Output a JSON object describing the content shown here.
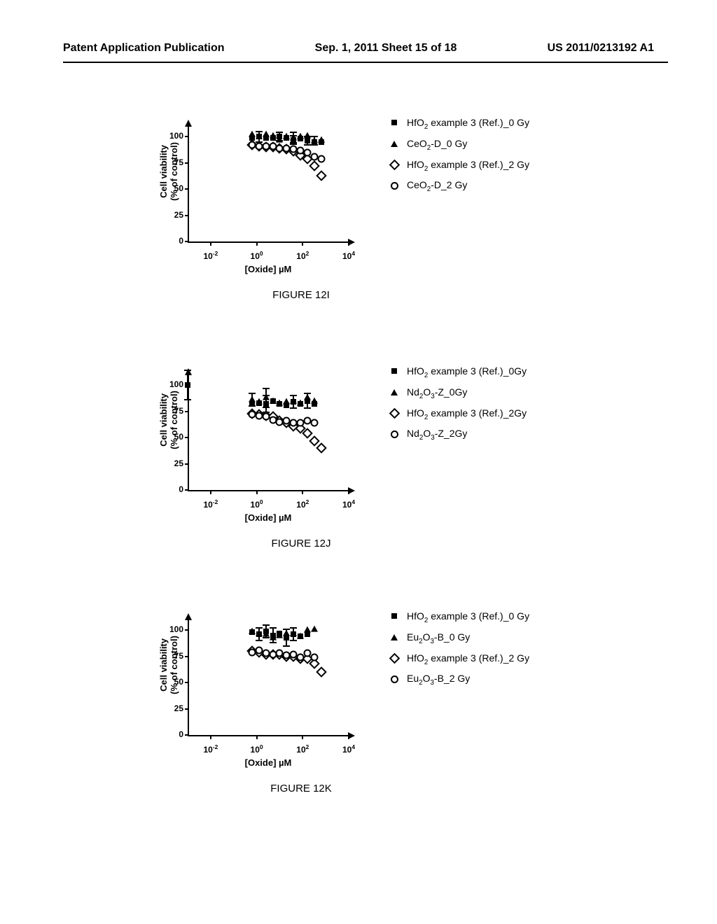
{
  "header": {
    "left": "Patent Application Publication",
    "center": "Sep. 1, 2011  Sheet 15 of 18",
    "right": "US 2011/0213192 A1"
  },
  "colors": {
    "text": "#000000",
    "background": "#ffffff",
    "axis": "#000000",
    "marker_fill": "#000000"
  },
  "axes": {
    "ylabel_line1": "Cell viability",
    "ylabel_line2": "(% of control)",
    "xlabel": "[Oxide] µM",
    "ylim": [
      0,
      110
    ],
    "yticks": [
      0,
      25,
      50,
      75,
      100
    ],
    "xlim_log": [
      -3,
      4
    ],
    "xticks_log": [
      -2,
      0,
      2,
      4
    ],
    "xticks_labels": [
      "10⁻²",
      "10⁰",
      "10²",
      "10⁴"
    ]
  },
  "figI": {
    "caption": "FIGURE 12I",
    "legend": [
      {
        "marker": "sq",
        "label_html": "HfO<sub>2</sub> example 3 (Ref.)_0 Gy"
      },
      {
        "marker": "tr",
        "label_html": "CeO<sub>2</sub>-D_0 Gy"
      },
      {
        "marker": "di",
        "label_html": "HfO<sub>2</sub> example 3 (Ref.)_2 Gy"
      },
      {
        "marker": "ci",
        "label_html": "CeO<sub>2</sub>-D_2 Gy"
      }
    ],
    "series": {
      "sq": [
        [
          -0.2,
          99
        ],
        [
          0.1,
          100
        ],
        [
          0.4,
          99
        ],
        [
          0.7,
          99
        ],
        [
          1.0,
          100
        ],
        [
          1.3,
          99
        ],
        [
          1.6,
          97
        ],
        [
          1.9,
          98
        ],
        [
          2.2,
          96
        ],
        [
          2.5,
          95
        ],
        [
          2.8,
          95
        ]
      ],
      "tr": [
        [
          -0.2,
          102
        ],
        [
          0.1,
          100
        ],
        [
          0.4,
          102
        ],
        [
          0.7,
          101
        ],
        [
          1.0,
          97
        ],
        [
          1.3,
          100
        ],
        [
          1.6,
          99
        ],
        [
          1.9,
          100
        ],
        [
          2.2,
          101
        ],
        [
          2.5,
          96
        ],
        [
          2.8,
          97
        ]
      ],
      "di": [
        [
          -0.2,
          92
        ],
        [
          0.1,
          91
        ],
        [
          0.4,
          90
        ],
        [
          0.7,
          90
        ],
        [
          1.0,
          89
        ],
        [
          1.3,
          88
        ],
        [
          1.6,
          86
        ],
        [
          1.9,
          82
        ],
        [
          2.2,
          79
        ],
        [
          2.5,
          72
        ],
        [
          2.8,
          63
        ]
      ],
      "ci": [
        [
          -0.2,
          92
        ],
        [
          0.1,
          91
        ],
        [
          0.4,
          91
        ],
        [
          0.7,
          91
        ],
        [
          1.0,
          89
        ],
        [
          1.3,
          89
        ],
        [
          1.6,
          88
        ],
        [
          1.9,
          87
        ],
        [
          2.2,
          85
        ],
        [
          2.5,
          81
        ],
        [
          2.8,
          79
        ]
      ]
    },
    "errorbars": {
      "sq": {
        "1.0": 4,
        "1.6": 4,
        "2.2": 4
      },
      "tr": {
        "0.1": 5,
        "1.6": 5,
        "2.5": 4
      }
    }
  },
  "figJ": {
    "caption": "FIGURE 12J",
    "legend": [
      {
        "marker": "sq",
        "label_html": "HfO<sub>2</sub> example 3 (Ref.)_0Gy"
      },
      {
        "marker": "tr",
        "label_html": "Nd<sub>2</sub>O<sub>3</sub>-Z_0Gy"
      },
      {
        "marker": "di",
        "label_html": "HfO<sub>2</sub> example 3 (Ref.)_2Gy"
      },
      {
        "marker": "ci",
        "label_html": "Nd<sub>2</sub>O<sub>3</sub>-Z_2Gy"
      }
    ],
    "series": {
      "sq": [
        [
          -0.2,
          82
        ],
        [
          0.1,
          83
        ],
        [
          0.4,
          82
        ],
        [
          0.7,
          85
        ],
        [
          1.0,
          82
        ],
        [
          1.3,
          81
        ],
        [
          1.6,
          84
        ],
        [
          1.9,
          82
        ],
        [
          2.2,
          85
        ],
        [
          2.5,
          82
        ]
      ],
      "tr": [
        [
          -0.2,
          86
        ],
        [
          0.1,
          84
        ],
        [
          0.4,
          88
        ],
        [
          0.7,
          85
        ],
        [
          1.0,
          83
        ],
        [
          1.3,
          84
        ],
        [
          1.6,
          85
        ],
        [
          1.9,
          83
        ],
        [
          2.2,
          88
        ],
        [
          2.5,
          85
        ]
      ],
      "di": [
        [
          -0.2,
          73
        ],
        [
          0.1,
          72
        ],
        [
          0.4,
          71
        ],
        [
          0.7,
          70
        ],
        [
          1.0,
          66
        ],
        [
          1.3,
          64
        ],
        [
          1.6,
          61
        ],
        [
          1.9,
          59
        ],
        [
          2.2,
          54
        ],
        [
          2.5,
          47
        ],
        [
          2.8,
          40
        ]
      ],
      "ci": [
        [
          -0.2,
          72
        ],
        [
          0.1,
          71
        ],
        [
          0.4,
          70
        ],
        [
          0.7,
          67
        ],
        [
          1.0,
          65
        ],
        [
          1.3,
          66
        ],
        [
          1.6,
          64
        ],
        [
          1.9,
          64
        ],
        [
          2.2,
          66
        ],
        [
          2.5,
          64
        ]
      ]
    },
    "errorbars": {
      "sq": {
        "-3": 14,
        "0.4": 8,
        "1.6": 6,
        "2.2": 7
      },
      "tr": {
        "-0.2": 6,
        "0.4": 9
      }
    },
    "axis_anchor": {
      "x": -3,
      "y": 100
    }
  },
  "figK": {
    "caption": "FIGURE 12K",
    "legend": [
      {
        "marker": "sq",
        "label_html": "HfO<sub>2</sub> example 3 (Ref.)_0 Gy"
      },
      {
        "marker": "tr",
        "label_html": "Eu<sub>2</sub>O<sub>3</sub>-B_0 Gy"
      },
      {
        "marker": "di",
        "label_html": "HfO<sub>2</sub> example 3 (Ref.)_2 Gy"
      },
      {
        "marker": "ci",
        "label_html": "Eu<sub>2</sub>O<sub>3</sub>-B_2 Gy"
      }
    ],
    "series": {
      "sq": [
        [
          -0.2,
          98
        ],
        [
          0.1,
          96
        ],
        [
          0.4,
          99
        ],
        [
          0.7,
          95
        ],
        [
          1.0,
          97
        ],
        [
          1.3,
          93
        ],
        [
          1.6,
          96
        ],
        [
          1.9,
          94
        ],
        [
          2.2,
          96
        ]
      ],
      "tr": [
        [
          -0.2,
          99
        ],
        [
          0.1,
          97
        ],
        [
          0.4,
          96
        ],
        [
          0.7,
          93
        ],
        [
          1.0,
          95
        ],
        [
          1.3,
          97
        ],
        [
          1.6,
          97
        ],
        [
          1.9,
          94
        ],
        [
          2.2,
          100
        ],
        [
          2.5,
          101
        ]
      ],
      "di": [
        [
          -0.2,
          80
        ],
        [
          0.1,
          79
        ],
        [
          0.4,
          77
        ],
        [
          0.7,
          77
        ],
        [
          1.0,
          77
        ],
        [
          1.3,
          75
        ],
        [
          1.6,
          75
        ],
        [
          1.9,
          73
        ],
        [
          2.2,
          73
        ],
        [
          2.5,
          68
        ],
        [
          2.8,
          60
        ]
      ],
      "ci": [
        [
          -0.2,
          79
        ],
        [
          0.1,
          81
        ],
        [
          0.4,
          78
        ],
        [
          0.7,
          77
        ],
        [
          1.0,
          78
        ],
        [
          1.3,
          76
        ],
        [
          1.6,
          77
        ],
        [
          1.9,
          74
        ],
        [
          2.2,
          78
        ],
        [
          2.5,
          74
        ]
      ]
    },
    "errorbars": {
      "sq": {
        "0.1": 6,
        "0.4": 6,
        "0.7": 7,
        "1.3": 8,
        "1.6": 6
      },
      "tr": {}
    }
  }
}
